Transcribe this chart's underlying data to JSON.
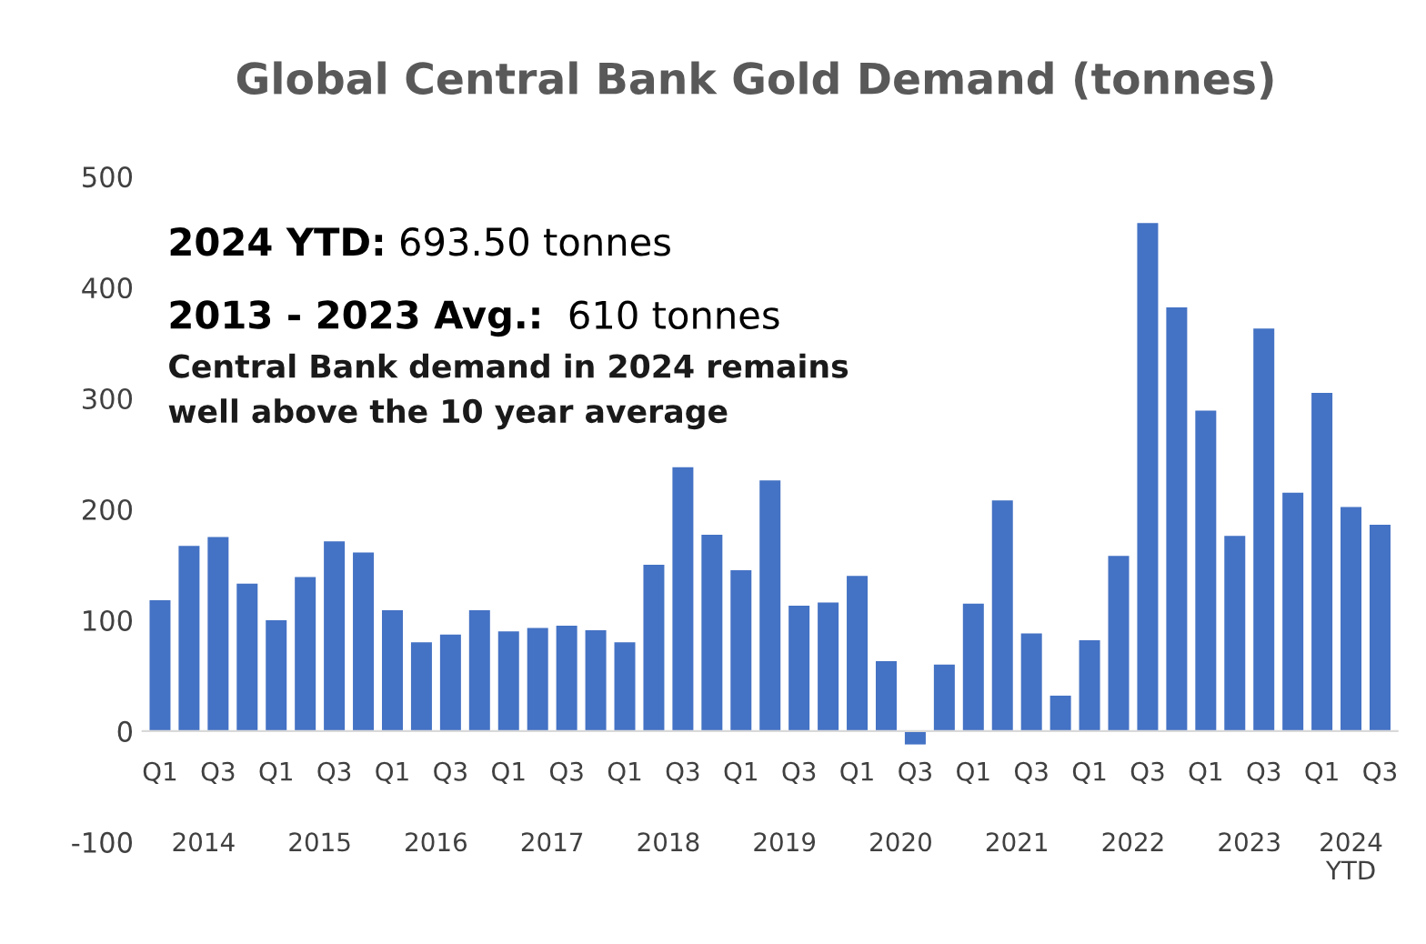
{
  "chart_data": {
    "type": "bar",
    "title": "Global Central Bank Gold Demand (tonnes)",
    "categories": [
      "Q1",
      null,
      "Q3",
      null,
      "Q1",
      null,
      "Q3",
      null,
      "Q1",
      null,
      "Q3",
      null,
      "Q1",
      null,
      "Q3",
      null,
      "Q1",
      null,
      "Q3",
      null,
      "Q1",
      null,
      "Q3",
      null,
      "Q1",
      null,
      "Q3",
      null,
      "Q1",
      null,
      "Q3",
      null,
      "Q1",
      null,
      "Q3",
      null,
      "Q1",
      null,
      "Q3",
      null,
      "Q1",
      null,
      "Q3"
    ],
    "values": [
      118,
      167,
      175,
      133,
      100,
      139,
      171,
      161,
      109,
      80,
      87,
      109,
      90,
      93,
      95,
      91,
      80,
      150,
      238,
      177,
      145,
      226,
      113,
      116,
      140,
      63,
      -12,
      60,
      115,
      208,
      88,
      32,
      82,
      158,
      458,
      382,
      289,
      176,
      363,
      215,
      305,
      202,
      186
    ],
    "color": "#4472c4",
    "ylim": [
      -100,
      500
    ],
    "yticks": [
      -100,
      0,
      100,
      200,
      300,
      400,
      500
    ],
    "grid": false,
    "annotations": [
      "2014",
      "2015",
      "2016",
      "2017",
      "2018",
      "2019",
      "2020",
      "2021",
      "2022",
      "2023",
      "2024\nYTD",
      "2024 YTD: 693.50 tonnes",
      "2013 - 2023 Avg.:  610 tonnes",
      "Central Bank demand in 2024 remains\nwell above the 10 year average"
    ]
  }
}
